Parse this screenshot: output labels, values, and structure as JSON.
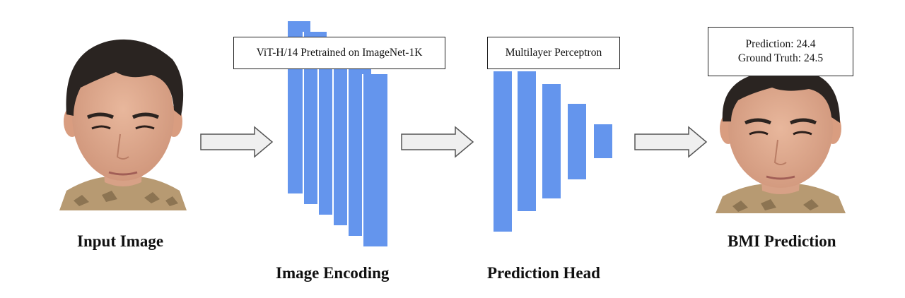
{
  "labels": {
    "input": "Input Image",
    "encoding": "Image Encoding",
    "head": "Prediction Head",
    "output": "BMI Prediction"
  },
  "encoder_box": "ViT-H/14 Pretrained on ImageNet-1K",
  "head_box": "Multilayer Perceptron",
  "prediction": {
    "prediction_line": "Prediction: 24.4",
    "ground_truth_line": "Ground Truth: 24.5"
  },
  "colors": {
    "bar": "#6495ed",
    "arrow_fill": "#efefef",
    "arrow_stroke": "#555555"
  },
  "icons": {
    "input_image": "face-photo",
    "output_image": "face-photo",
    "arrows": "right-arrow-icon"
  }
}
